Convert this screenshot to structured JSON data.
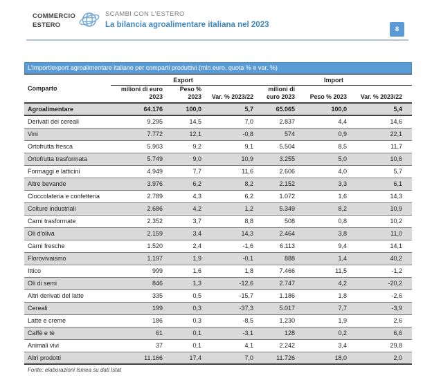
{
  "header": {
    "brand_line1": "COMMERCIO",
    "brand_line2": "ESTERO",
    "kicker": "SCAMBI CON L'ESTERO",
    "title": "La bilancia agroalimentare italiana nel 2023",
    "page_number": "8"
  },
  "colors": {
    "accent_blue": "#5b9bd5",
    "title_blue": "#3d87c4",
    "stripe_gray": "#d9d9d9",
    "rule_blue_gray": "#b3c2d8",
    "text_dark": "#1f1f1f"
  },
  "table": {
    "caption": "L'import/export agroalimentare italiano per comparti produttivi (mln euro, quota % e var. %)",
    "col_comparto": "Comparto",
    "group_export": "Export",
    "group_import": "Import",
    "subheaders": [
      "milioni di euro\n2023",
      "Peso % 2023",
      "Var. % 2023/22",
      "milioni di\neuro 2023",
      "Peso % 2023",
      "Var. % 2023/22"
    ],
    "rows": [
      {
        "label": "Agroalimentare",
        "values": [
          "64.176",
          "100,0",
          "5,7",
          "65.065",
          "100,0",
          "5,4"
        ],
        "bold": true
      },
      {
        "label": "Derivati dei cereali",
        "values": [
          "9.295",
          "14,5",
          "7,0",
          "2.837",
          "4,4",
          "14,6"
        ],
        "bold": false
      },
      {
        "label": "Vini",
        "values": [
          "7.772",
          "12,1",
          "-0,8",
          "574",
          "0,9",
          "22,1"
        ],
        "bold": false
      },
      {
        "label": "Ortofrutta fresca",
        "values": [
          "5.903",
          "9,2",
          "9,1",
          "5.504",
          "8,5",
          "11,7"
        ],
        "bold": false
      },
      {
        "label": "Ortofrutta trasformata",
        "values": [
          "5.749",
          "9,0",
          "10,9",
          "3.255",
          "5,0",
          "10,6"
        ],
        "bold": false
      },
      {
        "label": "Formaggi e latticini",
        "values": [
          "4.949",
          "7,7",
          "11,6",
          "2.606",
          "4,0",
          "5,7"
        ],
        "bold": false
      },
      {
        "label": "Altre bevande",
        "values": [
          "3.976",
          "6,2",
          "8,2",
          "2.152",
          "3,3",
          "6,1"
        ],
        "bold": false
      },
      {
        "label": "Cioccolateria e confetteria",
        "values": [
          "2.789",
          "4,3",
          "6,2",
          "1.072",
          "1,6",
          "14,3"
        ],
        "bold": false
      },
      {
        "label": "Colture industriali",
        "values": [
          "2.686",
          "4,2",
          "1,2",
          "5.349",
          "8,2",
          "10,9"
        ],
        "bold": false
      },
      {
        "label": "Carni trasformate",
        "values": [
          "2.352",
          "3,7",
          "8,8",
          "508",
          "0,8",
          "10,2"
        ],
        "bold": false
      },
      {
        "label": "Oli d'oliva",
        "values": [
          "2.159",
          "3,4",
          "14,3",
          "2.464",
          "3,8",
          "11,0"
        ],
        "bold": false
      },
      {
        "label": "Carni fresche",
        "values": [
          "1.520",
          "2,4",
          "-1,6",
          "6.113",
          "9,4",
          "14,1"
        ],
        "bold": false
      },
      {
        "label": "Florovivaismo",
        "values": [
          "1.197",
          "1,9",
          "-0,1",
          "888",
          "1,4",
          "40,2"
        ],
        "bold": false
      },
      {
        "label": "Ittico",
        "values": [
          "999",
          "1,6",
          "1,8",
          "7.466",
          "11,5",
          "-1,2"
        ],
        "bold": false
      },
      {
        "label": "Oli di semi",
        "values": [
          "846",
          "1,3",
          "-12,6",
          "2.747",
          "4,2",
          "-20,2"
        ],
        "bold": false
      },
      {
        "label": "Altri derivati del latte",
        "values": [
          "335",
          "0,5",
          "-15,7",
          "1.186",
          "1,8",
          "-2,6"
        ],
        "bold": false
      },
      {
        "label": "Cereali",
        "values": [
          "199",
          "0,3",
          "-37,3",
          "5.017",
          "7,7",
          "-3,9"
        ],
        "bold": false
      },
      {
        "label": "Latte e creme",
        "values": [
          "186",
          "0,3",
          "-8,5",
          "1.230",
          "1,9",
          "2,6"
        ],
        "bold": false
      },
      {
        "label": "Caffè e tè",
        "values": [
          "61",
          "0,1",
          "-3,1",
          "128",
          "0,2",
          "6,6"
        ],
        "bold": false
      },
      {
        "label": "Animali vivi",
        "values": [
          "37",
          "0,1",
          "4,1",
          "2.242",
          "3,4",
          "29,8"
        ],
        "bold": false
      },
      {
        "label": "Altri prodotti",
        "values": [
          "11.166",
          "17,4",
          "7,0",
          "11.726",
          "18,0",
          "2,0"
        ],
        "bold": false
      }
    ]
  },
  "footer": {
    "source": "Fonte: elaborazioni Ismea su dati Istat"
  }
}
